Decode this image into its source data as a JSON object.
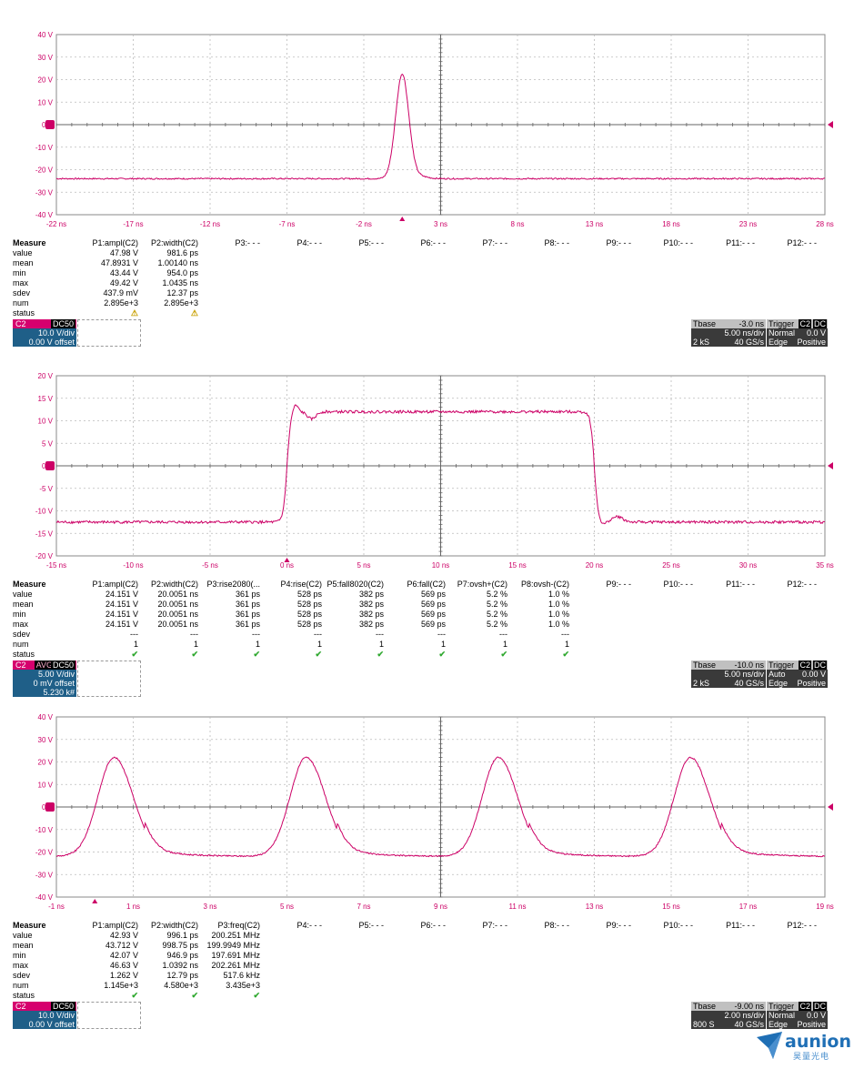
{
  "panels": [
    {
      "top": 0,
      "y_ticks": [
        "40 V",
        "30 V",
        "20 V",
        "10 V",
        "0 V",
        "-10 V",
        "-20 V",
        "-30 V",
        "-40 V"
      ],
      "x_ticks": [
        "-22 ns",
        "-17 ns",
        "-12 ns",
        "-7 ns",
        "-2 ns",
        "3 ns",
        "8 ns",
        "13 ns",
        "18 ns",
        "23 ns",
        "28 ns"
      ],
      "measure": {
        "headers": [
          "P1:ampl(C2)",
          "P2:width(C2)",
          "P3:- - -",
          "P4:- - -",
          "P5:- - -",
          "P6:- - -",
          "P7:- - -",
          "P8:- - -",
          "P9:- - -",
          "P10:- - -",
          "P11:- - -",
          "P12:- - -"
        ],
        "row_labels": [
          "Measure",
          "value",
          "mean",
          "min",
          "max",
          "sdev",
          "num",
          "status"
        ],
        "columns": [
          [
            "47.98 V",
            "47.8931 V",
            "43.44 V",
            "49.42 V",
            "437.9 mV",
            "2.895e+3",
            "warn"
          ],
          [
            "981.6 ps",
            "1.00140 ns",
            "954.0 ps",
            "1.0435 ns",
            "12.37 ps",
            "2.895e+3",
            "warn"
          ]
        ]
      },
      "channel": {
        "label": "C2",
        "mode": "DC50",
        "avg": "",
        "lines": [
          "10.0 V/div",
          "0.00 V offset"
        ]
      },
      "tbase": {
        "title": "Tbase",
        "tbase_val": "-3.0 ns",
        "trigger": "Trigger",
        "trig_ch": "C2",
        "trig_cpl": "DC",
        "div": "5.00 ns/div",
        "mode": "Normal",
        "level": "0.0 V",
        "samples": "2 kS",
        "rate": "40 GS/s",
        "type": "Edge",
        "slope": "Positive"
      }
    },
    {
      "top": 375,
      "y_ticks": [
        "20 V",
        "15 V",
        "10 V",
        "5 V",
        "0 V",
        "-5 V",
        "-10 V",
        "-15 V",
        "-20 V"
      ],
      "x_ticks": [
        "-15 ns",
        "-10 ns",
        "-5 ns",
        "0 ns",
        "5 ns",
        "10 ns",
        "15 ns",
        "20 ns",
        "25 ns",
        "30 ns",
        "35 ns"
      ],
      "measure": {
        "headers": [
          "P1:ampl(C2)",
          "P2:width(C2)",
          "P3:rise2080(...",
          "P4:rise(C2)",
          "P5:fall8020(C2)",
          "P6:fall(C2)",
          "P7:ovsh+(C2)",
          "P8:ovsh-(C2)",
          "P9:- - -",
          "P10:- - -",
          "P11:- - -",
          "P12:- - -"
        ],
        "row_labels": [
          "Measure",
          "value",
          "mean",
          "min",
          "max",
          "sdev",
          "num",
          "status"
        ],
        "columns": [
          [
            "24.151 V",
            "24.151 V",
            "24.151 V",
            "24.151 V",
            "---",
            "1",
            "ok"
          ],
          [
            "20.0051 ns",
            "20.0051 ns",
            "20.0051 ns",
            "20.0051 ns",
            "---",
            "1",
            "ok"
          ],
          [
            "361 ps",
            "361 ps",
            "361 ps",
            "361 ps",
            "---",
            "1",
            "ok"
          ],
          [
            "528 ps",
            "528 ps",
            "528 ps",
            "528 ps",
            "---",
            "1",
            "ok"
          ],
          [
            "382 ps",
            "382 ps",
            "382 ps",
            "382 ps",
            "---",
            "1",
            "ok"
          ],
          [
            "569 ps",
            "569 ps",
            "569 ps",
            "569 ps",
            "---",
            "1",
            "ok"
          ],
          [
            "5.2 %",
            "5.2 %",
            "5.2 %",
            "5.2 %",
            "---",
            "1",
            "ok"
          ],
          [
            "1.0 %",
            "1.0 %",
            "1.0 %",
            "1.0 %",
            "---",
            "1",
            "ok"
          ]
        ]
      },
      "channel": {
        "label": "C2",
        "mode": "DC50",
        "avg": "AVG",
        "lines": [
          "5.00 V/div",
          "0 mV offset",
          "5.230 k#"
        ]
      },
      "tbase": {
        "title": "Tbase",
        "tbase_val": "-10.0 ns",
        "trigger": "Trigger",
        "trig_ch": "C2",
        "trig_cpl": "DC",
        "div": "5.00 ns/div",
        "mode": "Auto",
        "level": "0.00 V",
        "samples": "2 kS",
        "rate": "40 GS/s",
        "type": "Edge",
        "slope": "Positive"
      }
    },
    {
      "top": 750,
      "y_ticks": [
        "40 V",
        "30 V",
        "20 V",
        "10 V",
        "0 V",
        "-10 V",
        "-20 V",
        "-30 V",
        "-40 V"
      ],
      "x_ticks": [
        "-1 ns",
        "1 ns",
        "3 ns",
        "5 ns",
        "7 ns",
        "9 ns",
        "11 ns",
        "13 ns",
        "15 ns",
        "17 ns",
        "19 ns"
      ],
      "measure": {
        "headers": [
          "P1:ampl(C2)",
          "P2:width(C2)",
          "P3:freq(C2)",
          "P4:- - -",
          "P5:- - -",
          "P6:- - -",
          "P7:- - -",
          "P8:- - -",
          "P9:- - -",
          "P10:- - -",
          "P11:- - -",
          "P12:- - -"
        ],
        "row_labels": [
          "Measure",
          "value",
          "mean",
          "min",
          "max",
          "sdev",
          "num",
          "status"
        ],
        "columns": [
          [
            "42.93 V",
            "43.712 V",
            "42.07 V",
            "46.63 V",
            "1.262 V",
            "1.145e+3",
            "ok"
          ],
          [
            "996.1 ps",
            "998.75 ps",
            "946.9 ps",
            "1.0392 ns",
            "12.79 ps",
            "4.580e+3",
            "ok"
          ],
          [
            "200.251 MHz",
            "199.9949 MHz",
            "197.691 MHz",
            "202.261 MHz",
            "517.6 kHz",
            "3.435e+3",
            "ok"
          ]
        ]
      },
      "channel": {
        "label": "C2",
        "mode": "DC50",
        "avg": "",
        "lines": [
          "10.0 V/div",
          "0.00 V offset"
        ]
      },
      "tbase": {
        "title": "Tbase",
        "tbase_val": "-9.00 ns",
        "trigger": "Trigger",
        "trig_ch": "C2",
        "trig_cpl": "DC",
        "div": "2.00 ns/div",
        "mode": "Normal",
        "level": "0.0 V",
        "samples": "800 S",
        "rate": "40 GS/s",
        "type": "Edge",
        "slope": "Positive"
      }
    }
  ],
  "waveforms": [
    {
      "kind": "single_pulse",
      "baseline_v": -24,
      "peak_v": 22.5,
      "peak_t_ns": 0.5,
      "fwhm_ns": 1.0
    },
    {
      "kind": "square",
      "low_v": -12.5,
      "high_v": 12,
      "rise_t_ns": 0,
      "fall_t_ns": 20,
      "overshoot_v": 13.2
    },
    {
      "kind": "pulse_train",
      "baseline_v": -22,
      "peak_v": 22,
      "period_ns": 5,
      "first_peak_t_ns": 0.5
    }
  ],
  "trace_color": "#cc0066",
  "logo": {
    "word": "aunion",
    "cn": "昊量光电"
  }
}
